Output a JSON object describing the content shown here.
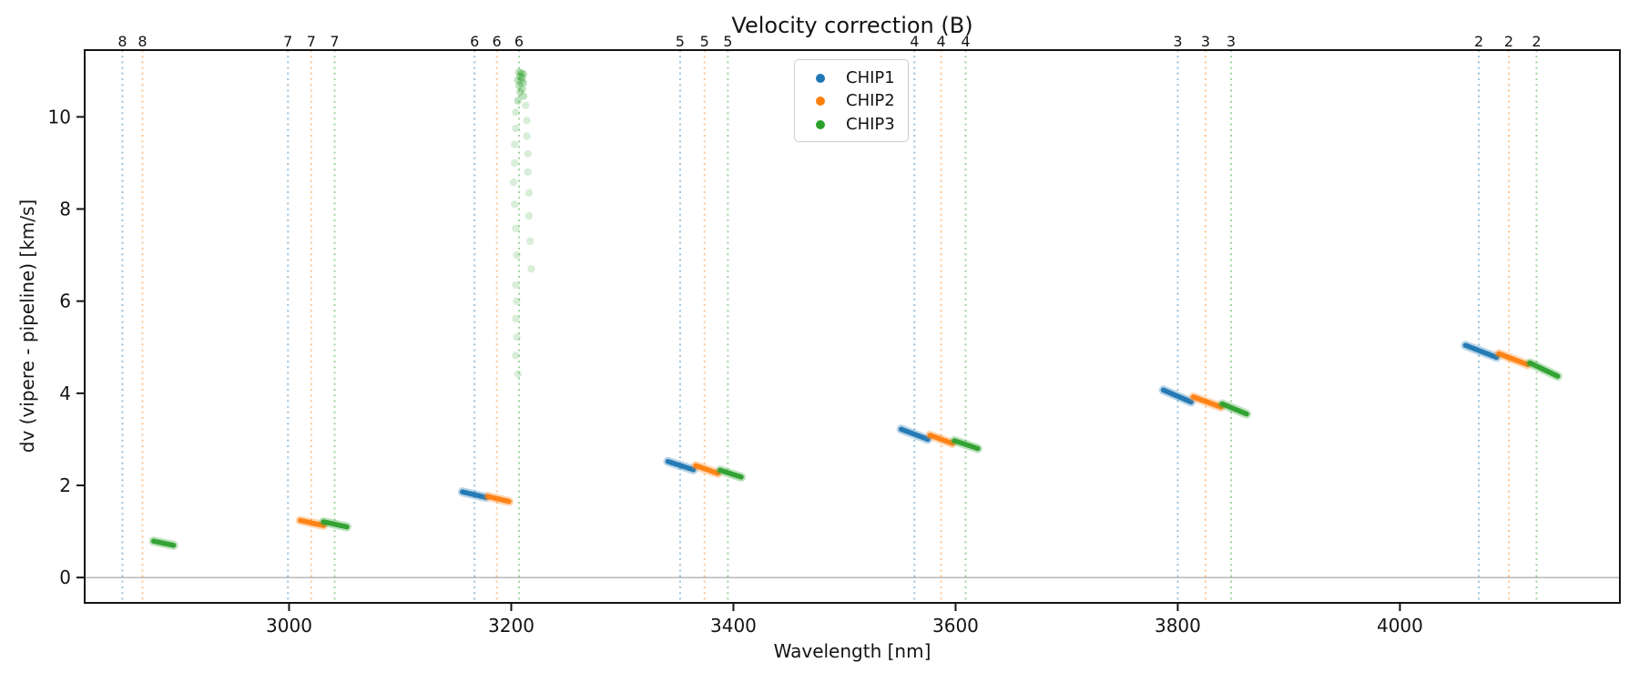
{
  "figure": {
    "background": "#ffffff"
  },
  "chart_data": {
    "type": "scatter",
    "title": "Velocity correction (B)",
    "xlabel": "Wavelength [nm]",
    "ylabel": "dv (vipere - pipeline) [km/s]",
    "xlim": [
      2816,
      4198
    ],
    "ylim": [
      -0.55,
      11.45
    ],
    "xticks": [
      3000,
      3200,
      3400,
      3600,
      3800,
      4000
    ],
    "yticks": [
      0,
      2,
      4,
      6,
      8,
      10
    ],
    "grid": false,
    "legend_position": "upper center",
    "zero_line_y": 0,
    "zero_line_color": "#888888",
    "axis_color": "#141414",
    "series": [
      {
        "name": "CHIP1",
        "color": "#1f77b4"
      },
      {
        "name": "CHIP2",
        "color": "#ff7f0e"
      },
      {
        "name": "CHIP3",
        "color": "#2ca02c"
      }
    ],
    "order_marker_lines": [
      {
        "order": "8",
        "chip": "CHIP1",
        "x": 2850
      },
      {
        "order": "8",
        "chip": "CHIP2",
        "x": 2868
      },
      {
        "order": "7",
        "chip": "CHIP1",
        "x": 2999
      },
      {
        "order": "7",
        "chip": "CHIP2",
        "x": 3020
      },
      {
        "order": "7",
        "chip": "CHIP3",
        "x": 3041
      },
      {
        "order": "6",
        "chip": "CHIP1",
        "x": 3167
      },
      {
        "order": "6",
        "chip": "CHIP2",
        "x": 3187
      },
      {
        "order": "6",
        "chip": "CHIP3",
        "x": 3207
      },
      {
        "order": "5",
        "chip": "CHIP1",
        "x": 3352
      },
      {
        "order": "5",
        "chip": "CHIP2",
        "x": 3374
      },
      {
        "order": "5",
        "chip": "CHIP3",
        "x": 3395
      },
      {
        "order": "4",
        "chip": "CHIP1",
        "x": 3563
      },
      {
        "order": "4",
        "chip": "CHIP2",
        "x": 3587
      },
      {
        "order": "4",
        "chip": "CHIP3",
        "x": 3609
      },
      {
        "order": "3",
        "chip": "CHIP1",
        "x": 3800
      },
      {
        "order": "3",
        "chip": "CHIP2",
        "x": 3825
      },
      {
        "order": "3",
        "chip": "CHIP3",
        "x": 3848
      },
      {
        "order": "2",
        "chip": "CHIP1",
        "x": 4071
      },
      {
        "order": "2",
        "chip": "CHIP2",
        "x": 4098
      },
      {
        "order": "2",
        "chip": "CHIP3",
        "x": 4123
      }
    ],
    "segments": [
      {
        "chip": "CHIP3",
        "order": "8",
        "x": [
          2878,
          2896
        ],
        "y": [
          0.79,
          0.7
        ]
      },
      {
        "chip": "CHIP2",
        "order": "7",
        "x": [
          3010,
          3031
        ],
        "y": [
          1.24,
          1.13
        ]
      },
      {
        "chip": "CHIP3",
        "order": "7",
        "x": [
          3031,
          3052
        ],
        "y": [
          1.21,
          1.1
        ]
      },
      {
        "chip": "CHIP1",
        "order": "6",
        "x": [
          3156,
          3177
        ],
        "y": [
          1.86,
          1.74
        ]
      },
      {
        "chip": "CHIP2",
        "order": "6",
        "x": [
          3179,
          3198
        ],
        "y": [
          1.76,
          1.65
        ]
      },
      {
        "chip": "CHIP1",
        "order": "5",
        "x": [
          3341,
          3364
        ],
        "y": [
          2.52,
          2.34
        ]
      },
      {
        "chip": "CHIP2",
        "order": "5",
        "x": [
          3366,
          3386
        ],
        "y": [
          2.43,
          2.26
        ]
      },
      {
        "chip": "CHIP3",
        "order": "5",
        "x": [
          3388,
          3407
        ],
        "y": [
          2.33,
          2.18
        ]
      },
      {
        "chip": "CHIP1",
        "order": "4",
        "x": [
          3551,
          3575
        ],
        "y": [
          3.22,
          3.0
        ]
      },
      {
        "chip": "CHIP2",
        "order": "4",
        "x": [
          3577,
          3597
        ],
        "y": [
          3.09,
          2.91
        ]
      },
      {
        "chip": "CHIP3",
        "order": "4",
        "x": [
          3599,
          3620
        ],
        "y": [
          2.97,
          2.8
        ]
      },
      {
        "chip": "CHIP1",
        "order": "3",
        "x": [
          3787,
          3812
        ],
        "y": [
          4.07,
          3.81
        ]
      },
      {
        "chip": "CHIP2",
        "order": "3",
        "x": [
          3814,
          3839
        ],
        "y": [
          3.92,
          3.7
        ]
      },
      {
        "chip": "CHIP3",
        "order": "3",
        "x": [
          3840,
          3862
        ],
        "y": [
          3.77,
          3.55
        ]
      },
      {
        "chip": "CHIP1",
        "order": "2",
        "x": [
          4059,
          4087
        ],
        "y": [
          5.04,
          4.78
        ]
      },
      {
        "chip": "CHIP2",
        "order": "2",
        "x": [
          4089,
          4115
        ],
        "y": [
          4.86,
          4.62
        ]
      },
      {
        "chip": "CHIP3",
        "order": "2",
        "x": [
          4117,
          4142
        ],
        "y": [
          4.66,
          4.37
        ]
      }
    ],
    "outlier_trail": {
      "chip": "CHIP3",
      "order": "6",
      "head": [
        [
          3207,
          10.97
        ],
        [
          3209,
          10.95
        ],
        [
          3211,
          10.93
        ],
        [
          3208,
          10.88
        ],
        [
          3210,
          10.86
        ],
        [
          3206,
          10.8
        ],
        [
          3209,
          10.78
        ],
        [
          3211,
          10.74
        ],
        [
          3207,
          10.68
        ],
        [
          3210,
          10.61
        ],
        [
          3208,
          10.54
        ],
        [
          3211,
          10.45
        ],
        [
          3206,
          10.35
        ]
      ],
      "trail": [
        [
          3213,
          10.25
        ],
        [
          3204,
          10.1
        ],
        [
          3214,
          9.92
        ],
        [
          3204,
          9.75
        ],
        [
          3214,
          9.58
        ],
        [
          3203,
          9.4
        ],
        [
          3215,
          9.2
        ],
        [
          3203,
          9.0
        ],
        [
          3215,
          8.8
        ],
        [
          3202,
          8.58
        ],
        [
          3216,
          8.35
        ],
        [
          3203,
          8.1
        ],
        [
          3216,
          7.85
        ],
        [
          3204,
          7.58
        ],
        [
          3217,
          7.3
        ],
        [
          3205,
          7.0
        ],
        [
          3218,
          6.7
        ],
        [
          3204,
          6.35
        ],
        [
          3205,
          6.0
        ],
        [
          3204,
          5.62
        ],
        [
          3205,
          5.22
        ],
        [
          3204,
          4.82
        ],
        [
          3206,
          4.42
        ]
      ]
    }
  }
}
